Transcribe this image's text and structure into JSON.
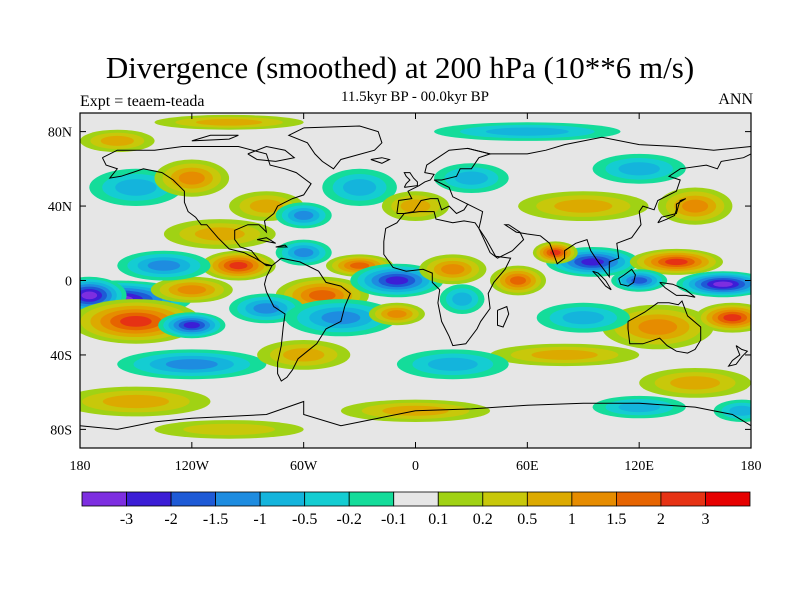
{
  "title": "Divergence (smoothed) at 200 hPa (10**6 m/s)",
  "subtitle": "11.5kyr BP - 00.0kyr BP",
  "expt_label": "Expt = teaem-teada",
  "period_label": "ANN",
  "map": {
    "type": "filled-contour-map",
    "lon_range": [
      -180,
      180
    ],
    "lat_range": [
      -90,
      90
    ],
    "y_ticks": [
      {
        "lat": 80,
        "label": "80N"
      },
      {
        "lat": 40,
        "label": "40N"
      },
      {
        "lat": 0,
        "label": "0"
      },
      {
        "lat": -40,
        "label": "40S"
      },
      {
        "lat": -80,
        "label": "80S"
      }
    ],
    "x_ticks": [
      {
        "lon": -180,
        "label": "180"
      },
      {
        "lon": -120,
        "label": "120W"
      },
      {
        "lon": -60,
        "label": "60W"
      },
      {
        "lon": 0,
        "label": "0"
      },
      {
        "lon": 60,
        "label": "60E"
      },
      {
        "lon": 120,
        "label": "120E"
      },
      {
        "lon": 180,
        "label": "180"
      }
    ],
    "features": [
      {
        "lon": -160,
        "lat": -10,
        "w": 40,
        "h": 10,
        "v": -3.2
      },
      {
        "lon": -175,
        "lat": -8,
        "w": 20,
        "h": 10,
        "v": -3.2
      },
      {
        "lon": -150,
        "lat": -22,
        "w": 35,
        "h": 12,
        "v": 2.2
      },
      {
        "lon": -120,
        "lat": -24,
        "w": 18,
        "h": 7,
        "v": -2.2
      },
      {
        "lon": -120,
        "lat": -5,
        "w": 22,
        "h": 7,
        "v": 1.2
      },
      {
        "lon": -95,
        "lat": 8,
        "w": 20,
        "h": 8,
        "v": 2.6
      },
      {
        "lon": -135,
        "lat": 8,
        "w": 25,
        "h": 8,
        "v": -1.2
      },
      {
        "lon": -105,
        "lat": 25,
        "w": 30,
        "h": 8,
        "v": 0.8
      },
      {
        "lon": -60,
        "lat": 15,
        "w": 15,
        "h": 7,
        "v": -1.4
      },
      {
        "lon": -50,
        "lat": -8,
        "w": 25,
        "h": 10,
        "v": 1.5
      },
      {
        "lon": -80,
        "lat": -15,
        "w": 20,
        "h": 8,
        "v": -1.0
      },
      {
        "lon": -30,
        "lat": 8,
        "w": 18,
        "h": 6,
        "v": 1.5
      },
      {
        "lon": -10,
        "lat": 0,
        "w": 25,
        "h": 9,
        "v": -2.8
      },
      {
        "lon": 20,
        "lat": 6,
        "w": 18,
        "h": 8,
        "v": 1.3
      },
      {
        "lon": -40,
        "lat": -20,
        "w": 30,
        "h": 10,
        "v": -1.3
      },
      {
        "lon": -10,
        "lat": -18,
        "w": 15,
        "h": 6,
        "v": 1.2
      },
      {
        "lon": 25,
        "lat": -10,
        "w": 12,
        "h": 8,
        "v": -0.8
      },
      {
        "lon": 55,
        "lat": 0,
        "w": 15,
        "h": 8,
        "v": 1.8
      },
      {
        "lon": 95,
        "lat": 10,
        "w": 25,
        "h": 8,
        "v": -2.0
      },
      {
        "lon": 75,
        "lat": 15,
        "w": 12,
        "h": 6,
        "v": 2.4
      },
      {
        "lon": 140,
        "lat": 10,
        "w": 25,
        "h": 7,
        "v": 2.0
      },
      {
        "lon": 165,
        "lat": -2,
        "w": 25,
        "h": 7,
        "v": -3.2
      },
      {
        "lon": 120,
        "lat": 0,
        "w": 15,
        "h": 6,
        "v": -1.6
      },
      {
        "lon": 130,
        "lat": -25,
        "w": 30,
        "h": 12,
        "v": 1.3
      },
      {
        "lon": 170,
        "lat": -20,
        "w": 20,
        "h": 8,
        "v": 2.1
      },
      {
        "lon": 90,
        "lat": -20,
        "w": 25,
        "h": 8,
        "v": -0.9
      },
      {
        "lon": 80,
        "lat": -40,
        "w": 40,
        "h": 6,
        "v": 0.6
      },
      {
        "lon": -80,
        "lat": 40,
        "w": 20,
        "h": 8,
        "v": 0.9
      },
      {
        "lon": -60,
        "lat": 35,
        "w": 15,
        "h": 7,
        "v": -1.0
      },
      {
        "lon": -150,
        "lat": 50,
        "w": 25,
        "h": 10,
        "v": -0.9
      },
      {
        "lon": -120,
        "lat": 55,
        "w": 20,
        "h": 10,
        "v": 1.0
      },
      {
        "lon": -30,
        "lat": 50,
        "w": 20,
        "h": 10,
        "v": -0.8
      },
      {
        "lon": 0,
        "lat": 40,
        "w": 18,
        "h": 8,
        "v": 0.8
      },
      {
        "lon": 30,
        "lat": 55,
        "w": 20,
        "h": 8,
        "v": -0.6
      },
      {
        "lon": 90,
        "lat": 40,
        "w": 35,
        "h": 8,
        "v": 0.7
      },
      {
        "lon": 150,
        "lat": 40,
        "w": 20,
        "h": 10,
        "v": 1.0
      },
      {
        "lon": 120,
        "lat": 60,
        "w": 25,
        "h": 8,
        "v": -0.6
      },
      {
        "lon": -160,
        "lat": 75,
        "w": 20,
        "h": 6,
        "v": 0.7
      },
      {
        "lon": -100,
        "lat": 85,
        "w": 40,
        "h": 4,
        "v": 0.5
      },
      {
        "lon": 60,
        "lat": 80,
        "w": 50,
        "h": 5,
        "v": -0.5
      },
      {
        "lon": -120,
        "lat": -45,
        "w": 40,
        "h": 8,
        "v": -1.0
      },
      {
        "lon": -60,
        "lat": -40,
        "w": 25,
        "h": 8,
        "v": 0.8
      },
      {
        "lon": 20,
        "lat": -45,
        "w": 30,
        "h": 8,
        "v": -0.8
      },
      {
        "lon": 150,
        "lat": -55,
        "w": 30,
        "h": 8,
        "v": 0.8
      },
      {
        "lon": -150,
        "lat": -65,
        "w": 40,
        "h": 8,
        "v": 0.7
      },
      {
        "lon": 0,
        "lat": -70,
        "w": 40,
        "h": 6,
        "v": 0.6
      },
      {
        "lon": 120,
        "lat": -68,
        "w": 25,
        "h": 6,
        "v": -0.6
      },
      {
        "lon": 175,
        "lat": -70,
        "w": 15,
        "h": 6,
        "v": -0.7
      },
      {
        "lon": -100,
        "lat": -80,
        "w": 40,
        "h": 5,
        "v": 0.4
      }
    ]
  },
  "colorbar": {
    "boundaries": [
      -99,
      -3,
      -2,
      -1.5,
      -1,
      -0.5,
      -0.2,
      -0.1,
      0.1,
      0.2,
      0.5,
      1,
      1.5,
      2,
      3,
      99
    ],
    "colors": [
      "#7d2ee0",
      "#3c1ed6",
      "#1e5ad6",
      "#1e8ce0",
      "#14b4dc",
      "#14cdd2",
      "#14dc9a",
      "#e6e6e6",
      "#a0d214",
      "#c8c80a",
      "#dcaa00",
      "#e68c00",
      "#e66400",
      "#e63214",
      "#e60000"
    ],
    "labels": [
      "-3",
      "-2",
      "-1.5",
      "-1",
      "-0.5",
      "-0.2",
      "-0.1",
      "0.1",
      "0.2",
      "0.5",
      "1",
      "1.5",
      "2",
      "3"
    ]
  }
}
